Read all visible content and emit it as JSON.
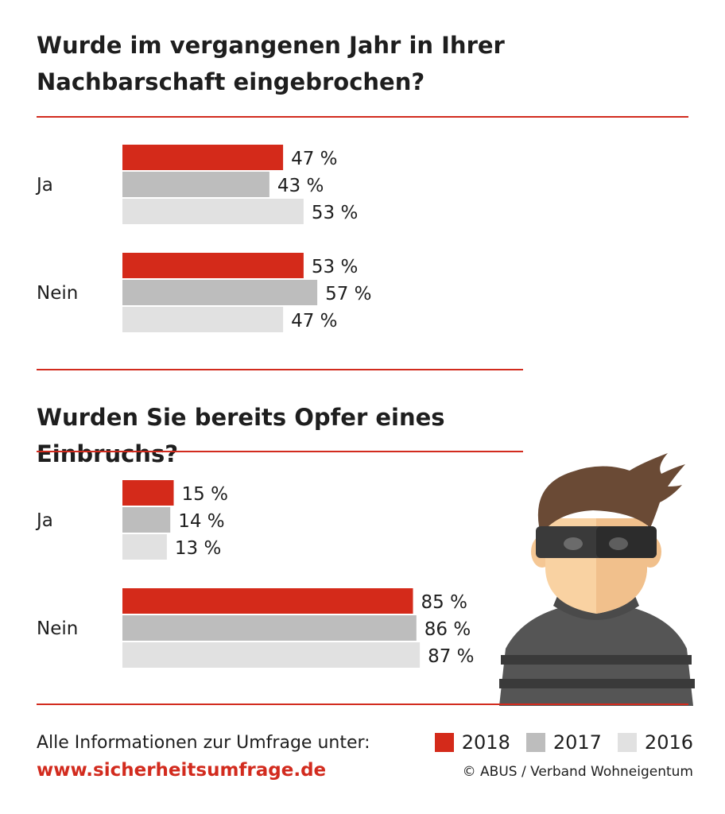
{
  "colors": {
    "accent": "#d22b1e",
    "s2018": "#d42a1a",
    "s2017": "#bdbdbd",
    "s2016": "#e1e1e1"
  },
  "chart_data": [
    {
      "type": "bar",
      "title": "Wurde im vergangenen Jahr in Ihrer Nachbarschaft eingebrochen?",
      "categories": [
        "Ja",
        "Nein"
      ],
      "series": [
        {
          "name": "2018",
          "values": [
            47,
            53
          ]
        },
        {
          "name": "2017",
          "values": [
            43,
            57
          ]
        },
        {
          "name": "2016",
          "values": [
            53,
            47
          ]
        }
      ],
      "unit": "%",
      "orientation": "horizontal"
    },
    {
      "type": "bar",
      "title": "Wurden Sie bereits Opfer eines Einbruchs?",
      "categories": [
        "Ja",
        "Nein"
      ],
      "series": [
        {
          "name": "2018",
          "values": [
            15,
            85
          ]
        },
        {
          "name": "2017",
          "values": [
            14,
            86
          ]
        },
        {
          "name": "2016",
          "values": [
            13,
            87
          ]
        }
      ],
      "unit": "%",
      "orientation": "horizontal"
    }
  ],
  "legend": [
    {
      "label": "2018",
      "color": "#d42a1a"
    },
    {
      "label": "2017",
      "color": "#bdbdbd"
    },
    {
      "label": "2016",
      "color": "#e1e1e1"
    }
  ],
  "footer": {
    "info": "Alle Informationen zur Umfrage unter:",
    "url": "www.sicherheitsumfrage.de",
    "copyright": "© ABUS / Verband Wohneigentum"
  }
}
